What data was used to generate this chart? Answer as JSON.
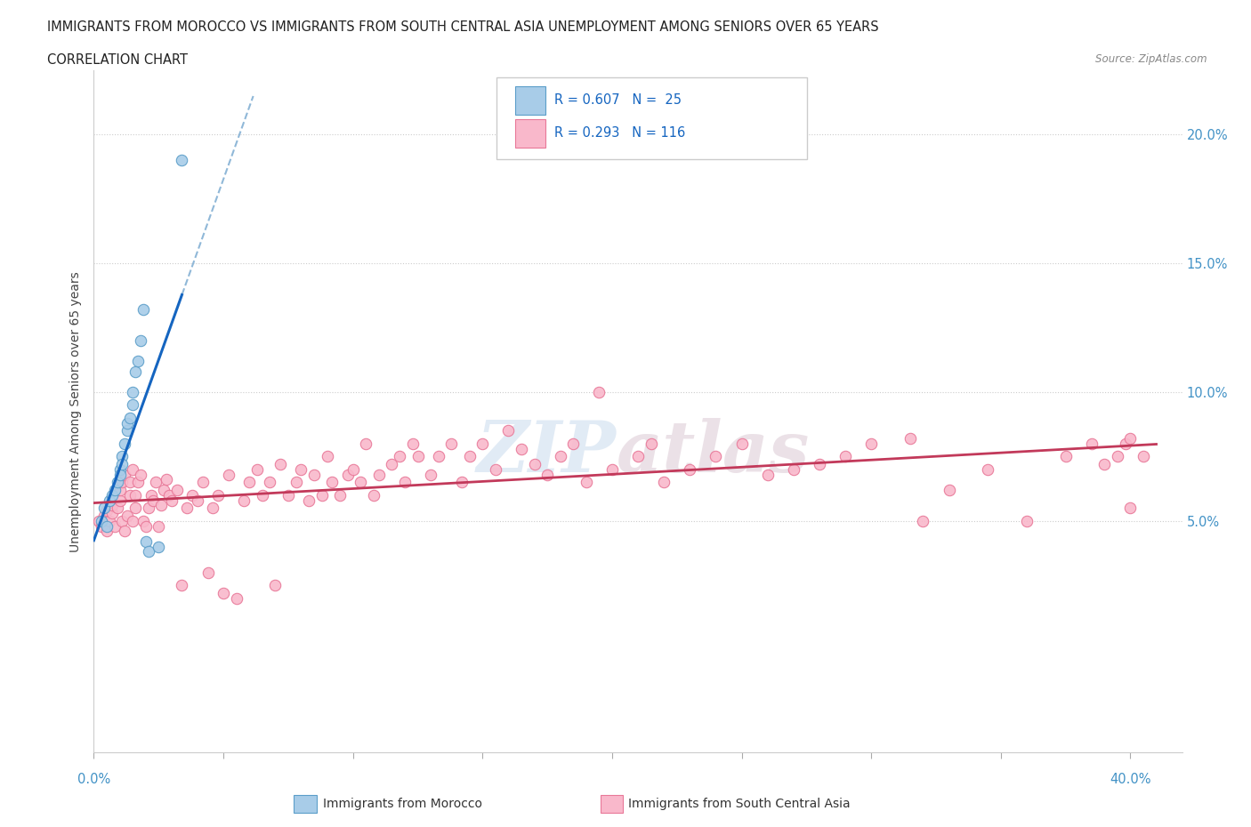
{
  "title_line1": "IMMIGRANTS FROM MOROCCO VS IMMIGRANTS FROM SOUTH CENTRAL ASIA UNEMPLOYMENT AMONG SENIORS OVER 65 YEARS",
  "title_line2": "CORRELATION CHART",
  "source": "Source: ZipAtlas.com",
  "ylabel": "Unemployment Among Seniors over 65 years",
  "xlim": [
    0.0,
    0.42
  ],
  "ylim": [
    -0.04,
    0.225
  ],
  "ytick_vals": [
    0.05,
    0.1,
    0.15,
    0.2
  ],
  "ytick_labels": [
    "5.0%",
    "10.0%",
    "15.0%",
    "20.0%"
  ],
  "xtick_vals": [
    0.0,
    0.05,
    0.1,
    0.15,
    0.2,
    0.25,
    0.3,
    0.35,
    0.4
  ],
  "morocco_color": "#a8cce8",
  "morocco_edge": "#5b9ec9",
  "sca_color": "#f9b8cb",
  "sca_edge": "#e87898",
  "line_morocco_color": "#1565c0",
  "line_sca_color": "#c2395a",
  "dash_color": "#90b8d8",
  "R_morocco": 0.607,
  "N_morocco": 25,
  "R_sca": 0.293,
  "N_sca": 116,
  "watermark": "ZIPAtlas",
  "bg_color": "#ffffff",
  "grid_color": "#cccccc",
  "tick_color": "#4292c6",
  "legend_box_color": "#e8f0f8",
  "legend_text_color": "#1565c0",
  "morocco_x": [
    0.003,
    0.004,
    0.005,
    0.006,
    0.007,
    0.008,
    0.009,
    0.01,
    0.01,
    0.011,
    0.011,
    0.012,
    0.013,
    0.013,
    0.014,
    0.015,
    0.015,
    0.016,
    0.017,
    0.018,
    0.019,
    0.02,
    0.021,
    0.025,
    0.034
  ],
  "morocco_y": [
    0.05,
    0.055,
    0.048,
    0.058,
    0.06,
    0.062,
    0.065,
    0.07,
    0.068,
    0.075,
    0.072,
    0.08,
    0.085,
    0.088,
    0.09,
    0.095,
    0.1,
    0.108,
    0.112,
    0.12,
    0.132,
    0.042,
    0.038,
    0.04,
    0.19
  ],
  "sca_x": [
    0.002,
    0.003,
    0.004,
    0.005,
    0.005,
    0.006,
    0.007,
    0.007,
    0.008,
    0.009,
    0.01,
    0.01,
    0.011,
    0.011,
    0.012,
    0.012,
    0.013,
    0.014,
    0.014,
    0.015,
    0.015,
    0.016,
    0.016,
    0.017,
    0.018,
    0.019,
    0.02,
    0.021,
    0.022,
    0.023,
    0.024,
    0.025,
    0.026,
    0.027,
    0.028,
    0.029,
    0.03,
    0.032,
    0.034,
    0.036,
    0.038,
    0.04,
    0.042,
    0.044,
    0.046,
    0.048,
    0.05,
    0.052,
    0.055,
    0.058,
    0.06,
    0.063,
    0.065,
    0.068,
    0.07,
    0.072,
    0.075,
    0.078,
    0.08,
    0.083,
    0.085,
    0.088,
    0.09,
    0.092,
    0.095,
    0.098,
    0.1,
    0.103,
    0.105,
    0.108,
    0.11,
    0.115,
    0.118,
    0.12,
    0.123,
    0.125,
    0.13,
    0.133,
    0.138,
    0.142,
    0.145,
    0.15,
    0.155,
    0.16,
    0.165,
    0.17,
    0.175,
    0.18,
    0.185,
    0.19,
    0.195,
    0.2,
    0.21,
    0.215,
    0.22,
    0.23,
    0.24,
    0.25,
    0.26,
    0.27,
    0.28,
    0.29,
    0.3,
    0.315,
    0.32,
    0.33,
    0.345,
    0.36,
    0.375,
    0.385,
    0.39,
    0.395,
    0.398,
    0.4,
    0.4,
    0.405
  ],
  "sca_y": [
    0.05,
    0.048,
    0.052,
    0.046,
    0.054,
    0.05,
    0.053,
    0.056,
    0.048,
    0.055,
    0.058,
    0.062,
    0.05,
    0.065,
    0.046,
    0.068,
    0.052,
    0.06,
    0.065,
    0.05,
    0.07,
    0.055,
    0.06,
    0.065,
    0.068,
    0.05,
    0.048,
    0.055,
    0.06,
    0.058,
    0.065,
    0.048,
    0.056,
    0.062,
    0.066,
    0.06,
    0.058,
    0.062,
    0.025,
    0.055,
    0.06,
    0.058,
    0.065,
    0.03,
    0.055,
    0.06,
    0.022,
    0.068,
    0.02,
    0.058,
    0.065,
    0.07,
    0.06,
    0.065,
    0.025,
    0.072,
    0.06,
    0.065,
    0.07,
    0.058,
    0.068,
    0.06,
    0.075,
    0.065,
    0.06,
    0.068,
    0.07,
    0.065,
    0.08,
    0.06,
    0.068,
    0.072,
    0.075,
    0.065,
    0.08,
    0.075,
    0.068,
    0.075,
    0.08,
    0.065,
    0.075,
    0.08,
    0.07,
    0.085,
    0.078,
    0.072,
    0.068,
    0.075,
    0.08,
    0.065,
    0.1,
    0.07,
    0.075,
    0.08,
    0.065,
    0.07,
    0.075,
    0.08,
    0.068,
    0.07,
    0.072,
    0.075,
    0.08,
    0.082,
    0.05,
    0.062,
    0.07,
    0.05,
    0.075,
    0.08,
    0.072,
    0.075,
    0.08,
    0.082,
    0.055,
    0.075
  ]
}
